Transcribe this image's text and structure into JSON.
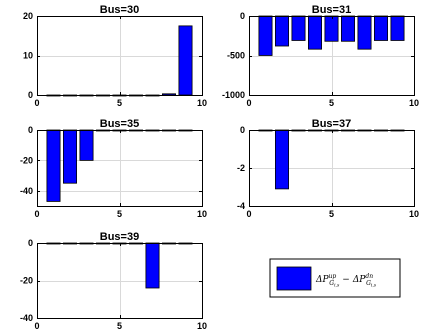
{
  "colors": {
    "bar": "#0000ff",
    "bar_edge": "#000000",
    "grid": "#d9d9d9"
  },
  "legend": {
    "label_main": "ΔP",
    "sup1": "up",
    "sub1": "G",
    "subsub1": "i,s",
    "minus": "−",
    "label_main2": "ΔP",
    "sup2": "dn",
    "sub2": "G",
    "subsub2": "i,s"
  },
  "chart_data": [
    {
      "type": "bar",
      "title": "Bus=30",
      "categories": [
        1,
        2,
        3,
        4,
        5,
        6,
        7,
        8,
        9
      ],
      "values": [
        0,
        0,
        0,
        0,
        0,
        0,
        0,
        0.3,
        17.5
      ],
      "xlim": [
        0,
        10
      ],
      "ylim": [
        0,
        20
      ],
      "xticks": [
        0,
        5,
        10
      ],
      "yticks": [
        0,
        10,
        20
      ],
      "xticklabels": [
        "0",
        "5",
        "10"
      ],
      "yticklabels": [
        "0",
        "10",
        "20"
      ],
      "grid": true
    },
    {
      "type": "bar",
      "title": "Bus=31",
      "categories": [
        1,
        2,
        3,
        4,
        5,
        6,
        7,
        8,
        9
      ],
      "values": [
        -500,
        -380,
        -310,
        -420,
        -320,
        -320,
        -420,
        -310,
        -310
      ],
      "xlim": [
        0,
        10
      ],
      "ylim": [
        -1000,
        0
      ],
      "xticks": [
        0,
        5,
        10
      ],
      "yticks": [
        -1000,
        -500,
        0
      ],
      "xticklabels": [
        "0",
        "5",
        "10"
      ],
      "yticklabels": [
        "-1000",
        "-500",
        "0"
      ],
      "grid": true
    },
    {
      "type": "bar",
      "title": "Bus=35",
      "categories": [
        1,
        2,
        3,
        4,
        5,
        6,
        7,
        8,
        9
      ],
      "values": [
        -47,
        -35,
        -20,
        0,
        0,
        0,
        0,
        0,
        0
      ],
      "xlim": [
        0,
        10
      ],
      "ylim": [
        -50,
        0
      ],
      "xticks": [
        0,
        5,
        10
      ],
      "yticks": [
        -40,
        -20,
        0
      ],
      "xticklabels": [
        "0",
        "5",
        "10"
      ],
      "yticklabels": [
        "-40",
        "-20",
        "0"
      ],
      "grid": true
    },
    {
      "type": "bar",
      "title": "Bus=37",
      "categories": [
        1,
        2,
        3,
        4,
        5,
        6,
        7,
        8,
        9
      ],
      "values": [
        0,
        -3.1,
        0,
        0,
        0,
        0,
        0,
        0,
        0
      ],
      "xlim": [
        0,
        10
      ],
      "ylim": [
        -4,
        0
      ],
      "xticks": [
        0,
        5,
        10
      ],
      "yticks": [
        -4,
        -2,
        0
      ],
      "xticklabels": [
        "0",
        "5",
        "10"
      ],
      "yticklabels": [
        "-4",
        "-2",
        "0"
      ],
      "grid": true
    },
    {
      "type": "bar",
      "title": "Bus=39",
      "categories": [
        1,
        2,
        3,
        4,
        5,
        6,
        7,
        8,
        9
      ],
      "values": [
        0,
        0,
        0,
        0,
        0,
        0,
        -24,
        0,
        0
      ],
      "xlim": [
        0,
        10
      ],
      "ylim": [
        -40,
        0
      ],
      "xticks": [
        0,
        5,
        10
      ],
      "yticks": [
        -40,
        -20,
        0
      ],
      "xticklabels": [
        "0",
        "5",
        "10"
      ],
      "yticklabels": [
        "-40",
        "-20",
        "0"
      ],
      "grid": true
    }
  ]
}
